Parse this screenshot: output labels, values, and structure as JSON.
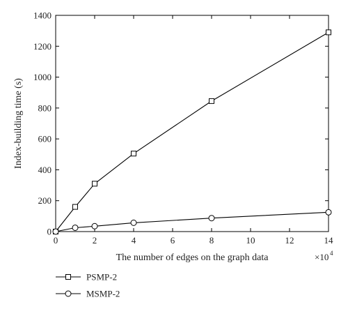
{
  "chart_data": {
    "type": "line",
    "title": "",
    "xlabel": "The number of edges on the graph data",
    "x_multiplier": "×10",
    "x_multiplier_exp": "4",
    "ylabel": "Index-building time (s)",
    "xlim": [
      0,
      14
    ],
    "ylim": [
      0,
      1400
    ],
    "x_ticks": [
      0,
      2,
      4,
      6,
      8,
      10,
      12,
      14
    ],
    "y_ticks": [
      0,
      200,
      400,
      600,
      800,
      1000,
      1200,
      1400
    ],
    "grid": false,
    "legend_position": "bottom-left outside",
    "series": [
      {
        "name": "PSMP-2",
        "marker": "square",
        "x": [
          0,
          1,
          2,
          4,
          8,
          14
        ],
        "values": [
          0,
          160,
          310,
          505,
          845,
          1290
        ]
      },
      {
        "name": "MSMP-2",
        "marker": "circle",
        "x": [
          0,
          1,
          2,
          4,
          8,
          14
        ],
        "values": [
          0,
          25,
          35,
          57,
          87,
          125
        ]
      }
    ]
  }
}
